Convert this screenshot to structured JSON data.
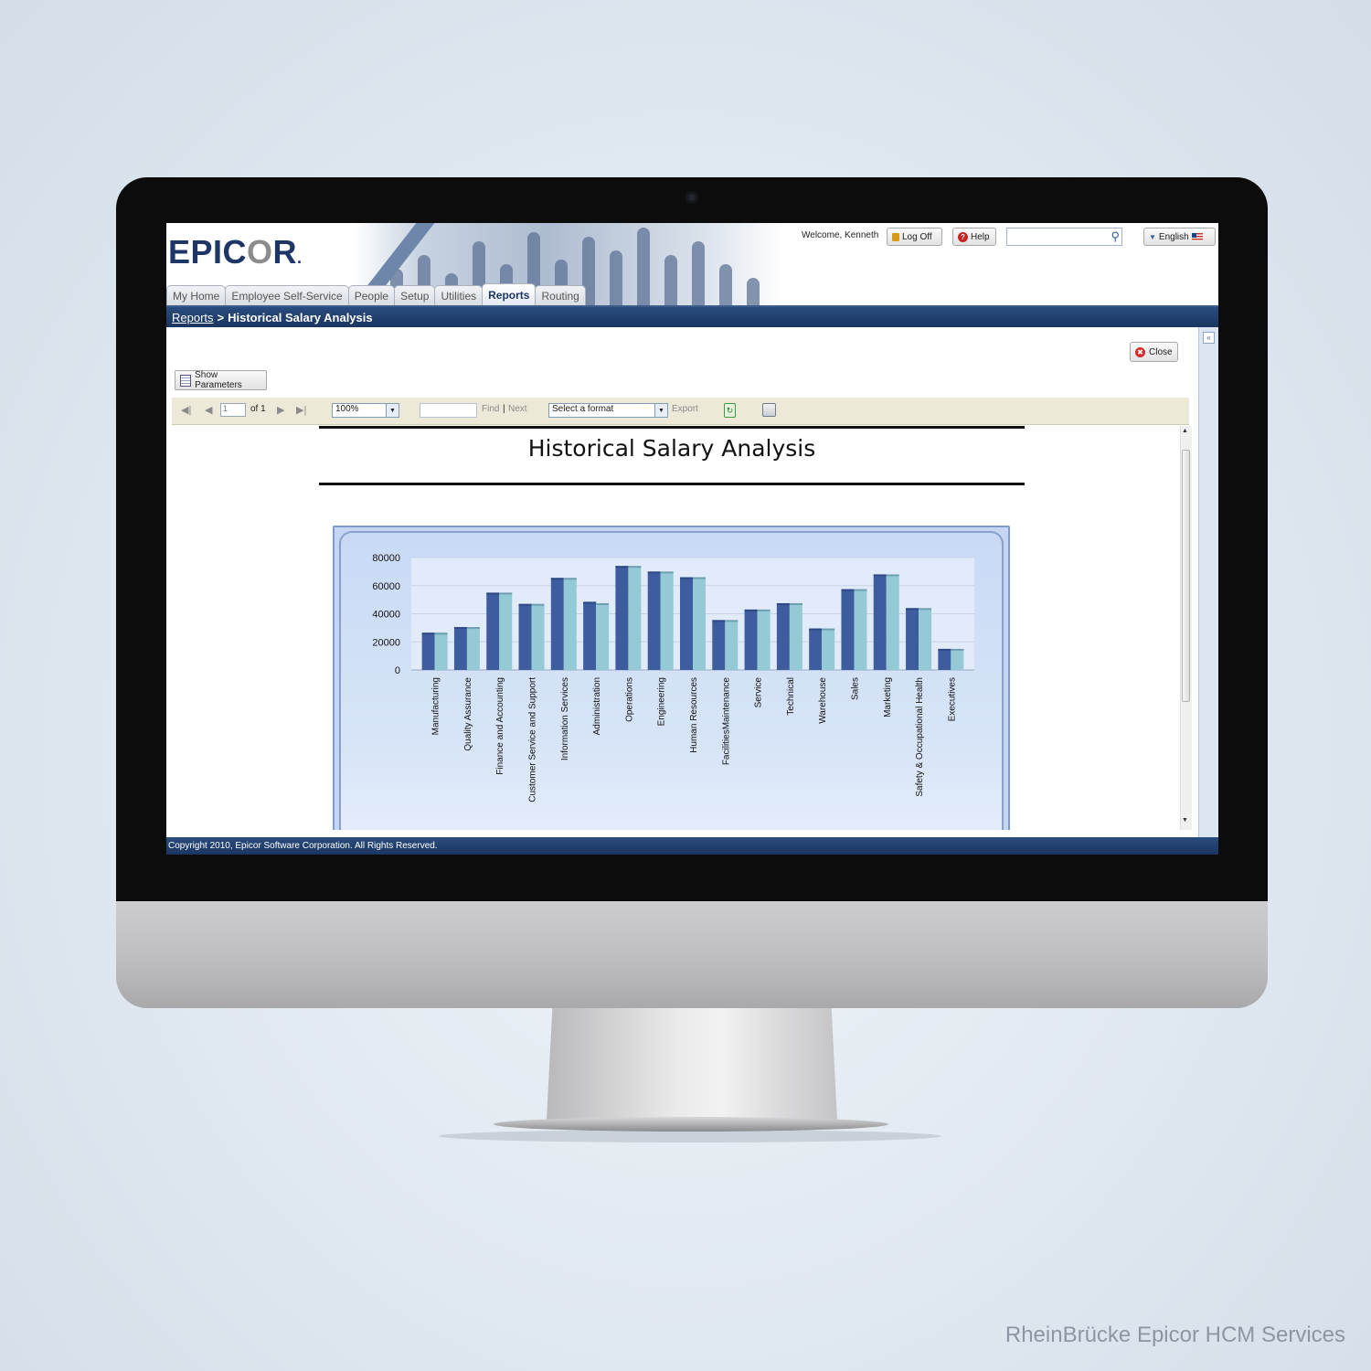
{
  "brand": {
    "logo_main": "EPIC",
    "logo_o": "O",
    "logo_end": "R",
    "logo_mark": "."
  },
  "header": {
    "welcome": "Welcome, Kenneth",
    "logoff_label": "Log Off",
    "help_label": "Help",
    "language_label": "English"
  },
  "tabs": [
    {
      "label": "My Home",
      "active": false
    },
    {
      "label": "Employee Self-Service",
      "active": false
    },
    {
      "label": "People",
      "active": false
    },
    {
      "label": "Setup",
      "active": false
    },
    {
      "label": "Utilities",
      "active": false
    },
    {
      "label": "Reports",
      "active": true
    },
    {
      "label": "Routing",
      "active": false
    }
  ],
  "breadcrumb": {
    "parent": "Reports",
    "separator": ">",
    "current": "Historical Salary Analysis"
  },
  "buttons": {
    "close_label": "Close",
    "show_parameters_label": "Show Parameters"
  },
  "toolbar": {
    "page_value": "1",
    "page_of": "of 1",
    "zoom_value": "100%",
    "find_label": "Find",
    "divider": "|",
    "next_label": "Next",
    "format_value": "Select a format",
    "export_label": "Export"
  },
  "report": {
    "title": "Historical Salary Analysis"
  },
  "chart_data": {
    "type": "bar",
    "title": "",
    "xlabel": "",
    "ylabel": "",
    "ylim": [
      0,
      80000
    ],
    "yticks": [
      0,
      20000,
      40000,
      60000,
      80000
    ],
    "grid": true,
    "categories": [
      "Manufacturing",
      "Quality Assurance",
      "Finance and Accounting",
      "Customer Service and Support",
      "Information Services",
      "Administration",
      "Operations",
      "Engineering",
      "Human Resources",
      "FacilitiesMaintenance",
      "Service",
      "Technical",
      "Warehouse",
      "Sales",
      "Marketing",
      "Safety & Occupational Health",
      "Executives"
    ],
    "series": [
      {
        "values": [
          26500,
          30500,
          55000,
          47000,
          65500,
          48500,
          74000,
          70000,
          66000,
          35500,
          43000,
          47500,
          29500,
          57500,
          68000,
          44000,
          15000
        ]
      },
      {
        "values": [
          26500,
          30500,
          55000,
          47000,
          65500,
          47500,
          74000,
          70000,
          66000,
          35500,
          43000,
          47500,
          29500,
          57500,
          68000,
          44000,
          15000
        ]
      }
    ],
    "colors": [
      "#3e5d9f",
      "#93cad6"
    ]
  },
  "footer": {
    "copyright": "Copyright 2010, Epicor Software Corporation. All Rights Reserved."
  },
  "watermark": "RheinBrücke Epicor HCM Services"
}
